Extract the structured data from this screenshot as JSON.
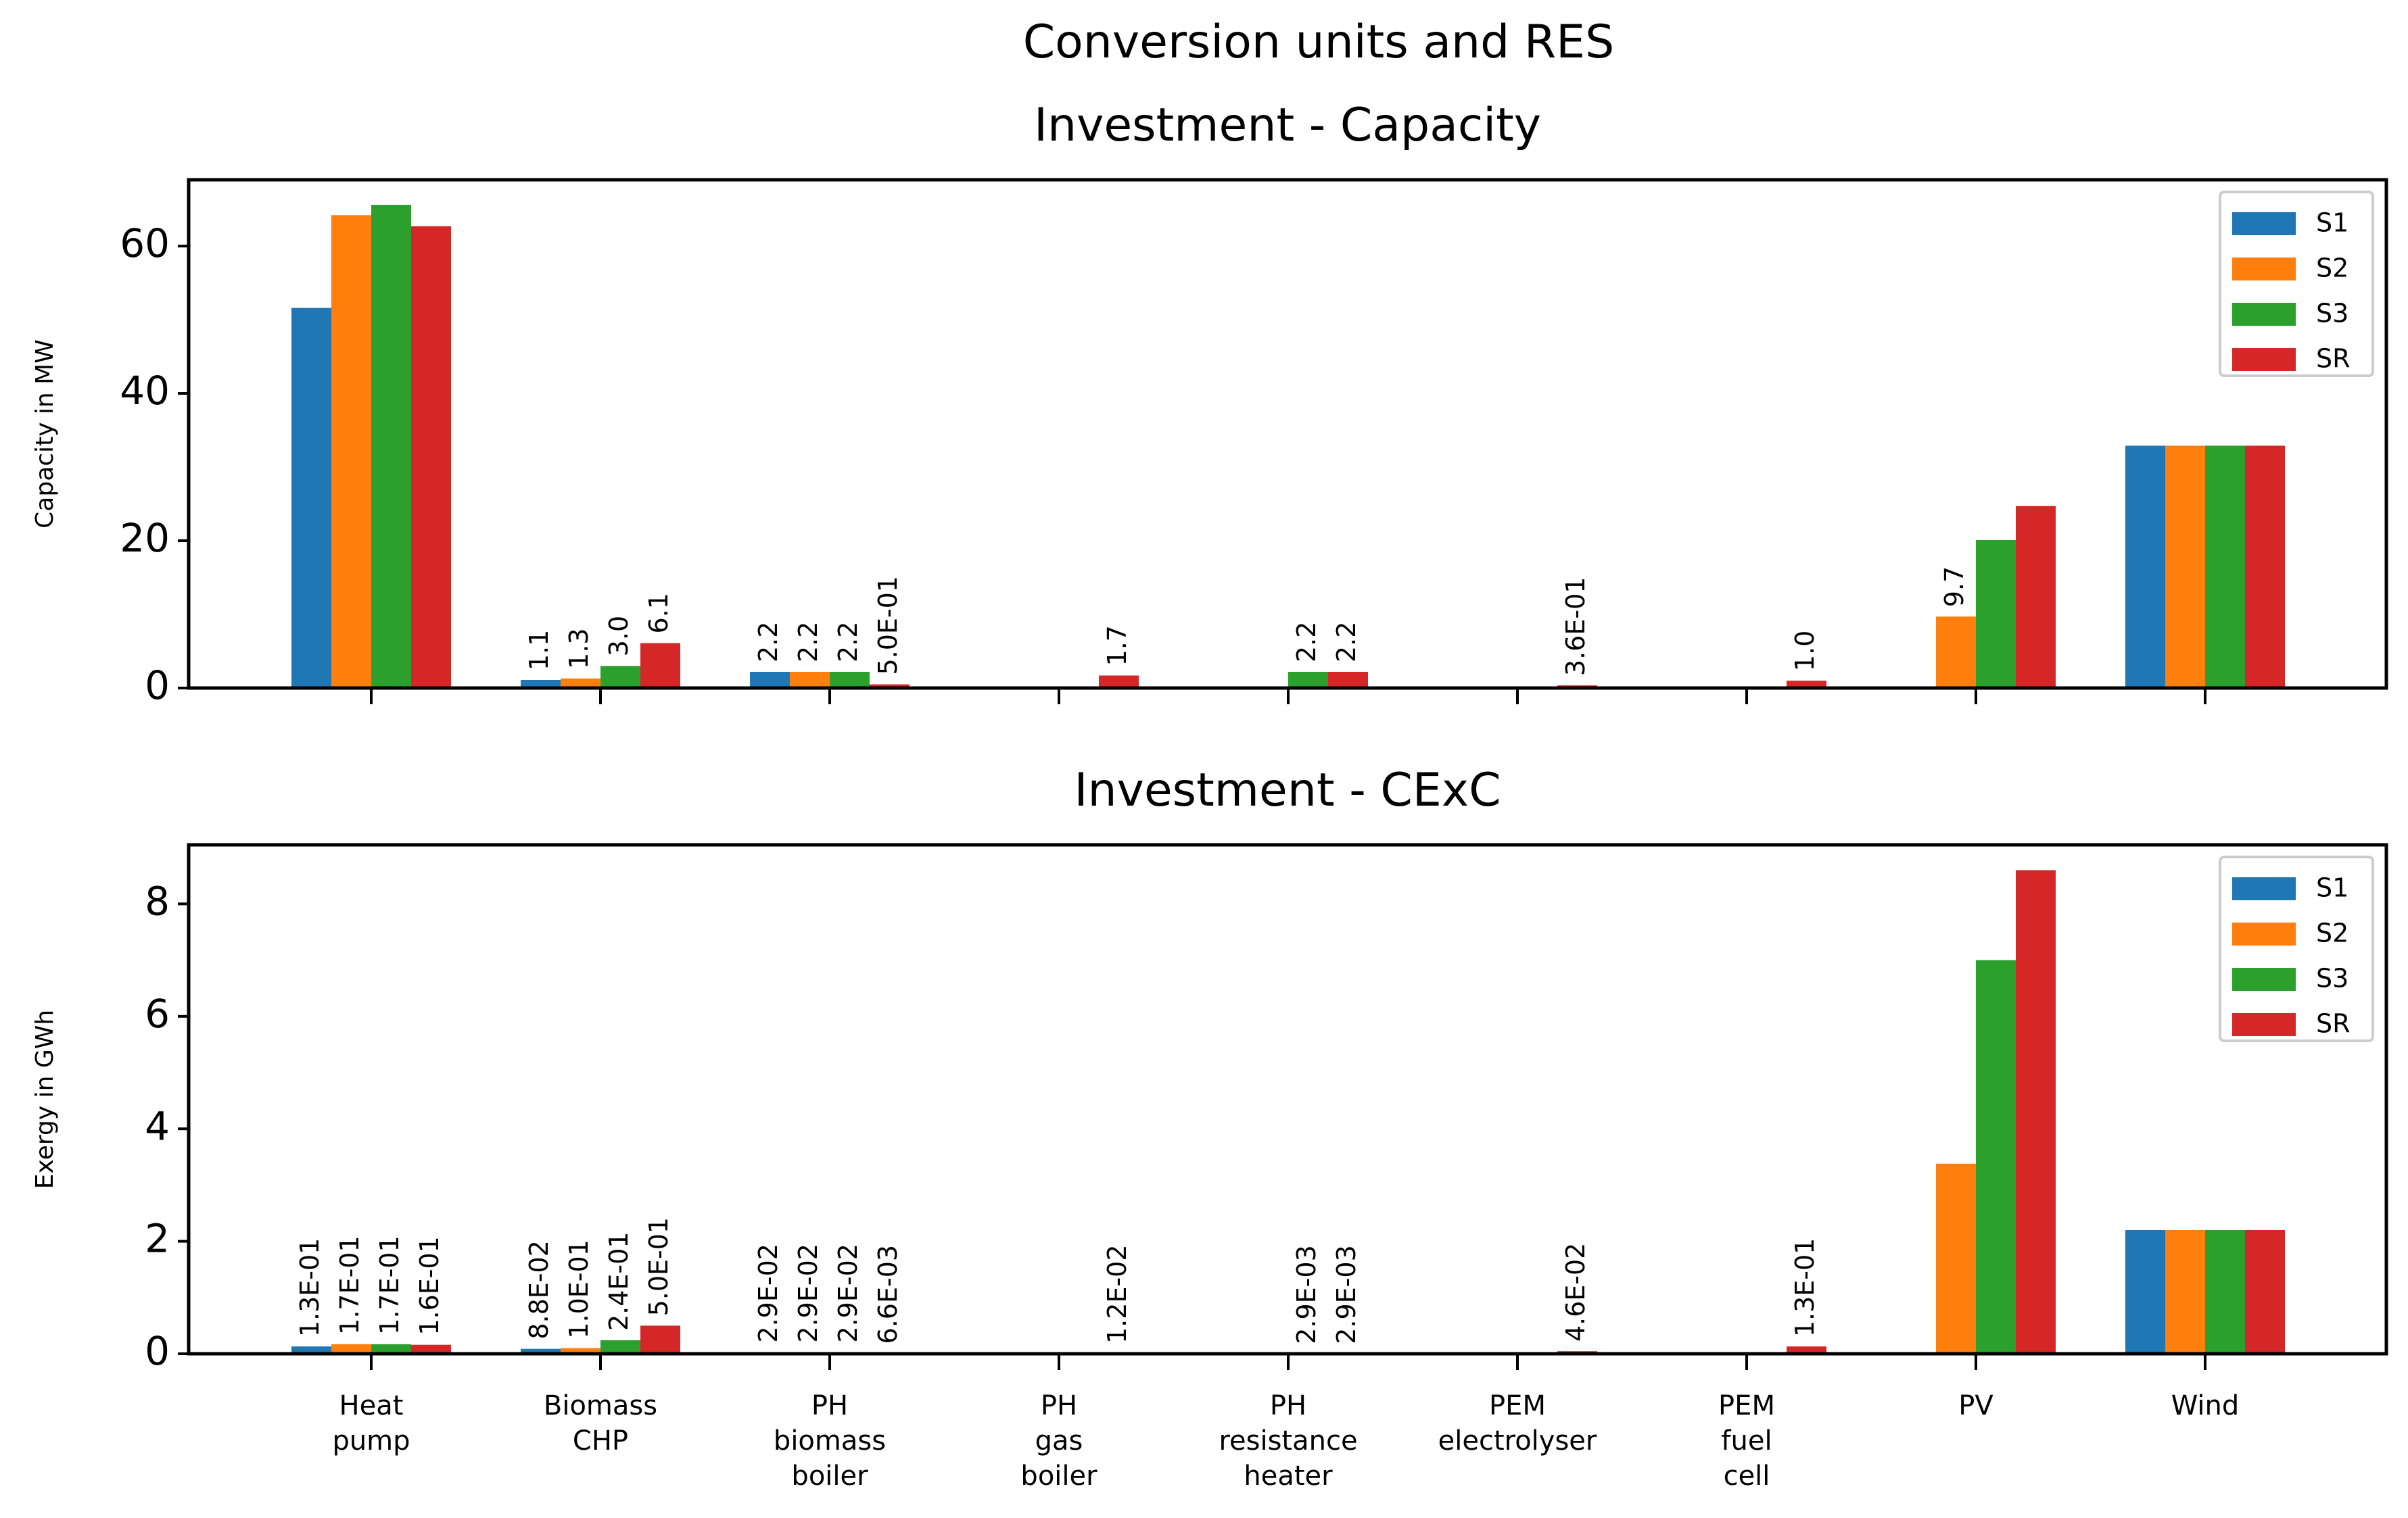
{
  "figure": {
    "suptitle": "Conversion units and RES"
  },
  "colors": {
    "S1": "#1f77b4",
    "S2": "#ff7f0e",
    "S3": "#2ca02c",
    "SR": "#d62728"
  },
  "chart_data": [
    {
      "type": "bar",
      "title": "Investment - Capacity",
      "xlabel": "",
      "ylabel": "Capacity in MW",
      "ylim": [
        0,
        69
      ],
      "yticks": [
        "0",
        "20",
        "40",
        "60"
      ],
      "ytick_values": [
        0,
        20,
        40,
        60
      ],
      "legend_position": "upper right",
      "categories": [
        "Heat\npump",
        "Biomass\nCHP",
        "PH\nbiomass\nboiler",
        "PH\ngas\nboiler",
        "PH\nresistance\nheater",
        "PEM\nelectrolyser",
        "PEM\nfuel\ncell",
        "PV",
        "Wind"
      ],
      "show_category_labels": false,
      "series": [
        {
          "name": "S1",
          "values": [
            51.6,
            1.1,
            2.2,
            0,
            0,
            0,
            0,
            0,
            32.9
          ]
        },
        {
          "name": "S2",
          "values": [
            64.2,
            1.3,
            2.2,
            0,
            0,
            0,
            0,
            9.7,
            32.9
          ]
        },
        {
          "name": "S3",
          "values": [
            65.6,
            3.0,
            2.2,
            0,
            2.2,
            0,
            0,
            20.1,
            32.9
          ]
        },
        {
          "name": "SR",
          "values": [
            62.7,
            6.1,
            0.5,
            1.7,
            2.2,
            0.36,
            1.0,
            24.7,
            32.9
          ]
        }
      ],
      "annotations": [
        {
          "category": 1,
          "series": 0,
          "text": "1.1"
        },
        {
          "category": 1,
          "series": 1,
          "text": "1.3"
        },
        {
          "category": 1,
          "series": 2,
          "text": "3.0"
        },
        {
          "category": 1,
          "series": 3,
          "text": "6.1"
        },
        {
          "category": 2,
          "series": 0,
          "text": "2.2"
        },
        {
          "category": 2,
          "series": 1,
          "text": "2.2"
        },
        {
          "category": 2,
          "series": 2,
          "text": "2.2"
        },
        {
          "category": 2,
          "series": 3,
          "text": "5.0E-01"
        },
        {
          "category": 3,
          "series": 3,
          "text": "1.7"
        },
        {
          "category": 4,
          "series": 2,
          "text": "2.2"
        },
        {
          "category": 4,
          "series": 3,
          "text": "2.2"
        },
        {
          "category": 5,
          "series": 3,
          "text": "3.6E-01"
        },
        {
          "category": 6,
          "series": 3,
          "text": "1.0"
        },
        {
          "category": 7,
          "series": 1,
          "text": "9.7"
        }
      ]
    },
    {
      "type": "bar",
      "title": "Investment - CExC",
      "xlabel": "",
      "ylabel": "Exergy in GWh",
      "ylim": [
        0,
        9.05
      ],
      "yticks": [
        "0",
        "2",
        "4",
        "6",
        "8"
      ],
      "ytick_values": [
        0,
        2,
        4,
        6,
        8
      ],
      "legend_position": "upper right",
      "categories": [
        "Heat\npump",
        "Biomass\nCHP",
        "PH\nbiomass\nboiler",
        "PH\ngas\nboiler",
        "PH\nresistance\nheater",
        "PEM\nelectrolyser",
        "PEM\nfuel\ncell",
        "PV",
        "Wind"
      ],
      "show_category_labels": true,
      "series": [
        {
          "name": "S1",
          "values": [
            0.13,
            0.088,
            0.029,
            0,
            0,
            0,
            0,
            0,
            2.2
          ]
        },
        {
          "name": "S2",
          "values": [
            0.17,
            0.1,
            0.029,
            0,
            0,
            0,
            0,
            3.38,
            2.2
          ]
        },
        {
          "name": "S3",
          "values": [
            0.17,
            0.24,
            0.029,
            0,
            0.0029,
            0,
            0,
            7.0,
            2.2
          ]
        },
        {
          "name": "SR",
          "values": [
            0.16,
            0.5,
            0.0066,
            0.012,
            0.0029,
            0.046,
            0.13,
            8.6,
            2.2
          ]
        }
      ],
      "annotations": [
        {
          "category": 0,
          "series": 0,
          "text": "1.3E-01"
        },
        {
          "category": 0,
          "series": 1,
          "text": "1.7E-01"
        },
        {
          "category": 0,
          "series": 2,
          "text": "1.7E-01"
        },
        {
          "category": 0,
          "series": 3,
          "text": "1.6E-01"
        },
        {
          "category": 1,
          "series": 0,
          "text": "8.8E-02"
        },
        {
          "category": 1,
          "series": 1,
          "text": "1.0E-01"
        },
        {
          "category": 1,
          "series": 2,
          "text": "2.4E-01"
        },
        {
          "category": 1,
          "series": 3,
          "text": "5.0E-01"
        },
        {
          "category": 2,
          "series": 0,
          "text": "2.9E-02"
        },
        {
          "category": 2,
          "series": 1,
          "text": "2.9E-02"
        },
        {
          "category": 2,
          "series": 2,
          "text": "2.9E-02"
        },
        {
          "category": 2,
          "series": 3,
          "text": "6.6E-03"
        },
        {
          "category": 3,
          "series": 3,
          "text": "1.2E-02"
        },
        {
          "category": 4,
          "series": 2,
          "text": "2.9E-03"
        },
        {
          "category": 4,
          "series": 3,
          "text": "2.9E-03"
        },
        {
          "category": 5,
          "series": 3,
          "text": "4.6E-02"
        },
        {
          "category": 6,
          "series": 3,
          "text": "1.3E-01"
        }
      ]
    }
  ]
}
